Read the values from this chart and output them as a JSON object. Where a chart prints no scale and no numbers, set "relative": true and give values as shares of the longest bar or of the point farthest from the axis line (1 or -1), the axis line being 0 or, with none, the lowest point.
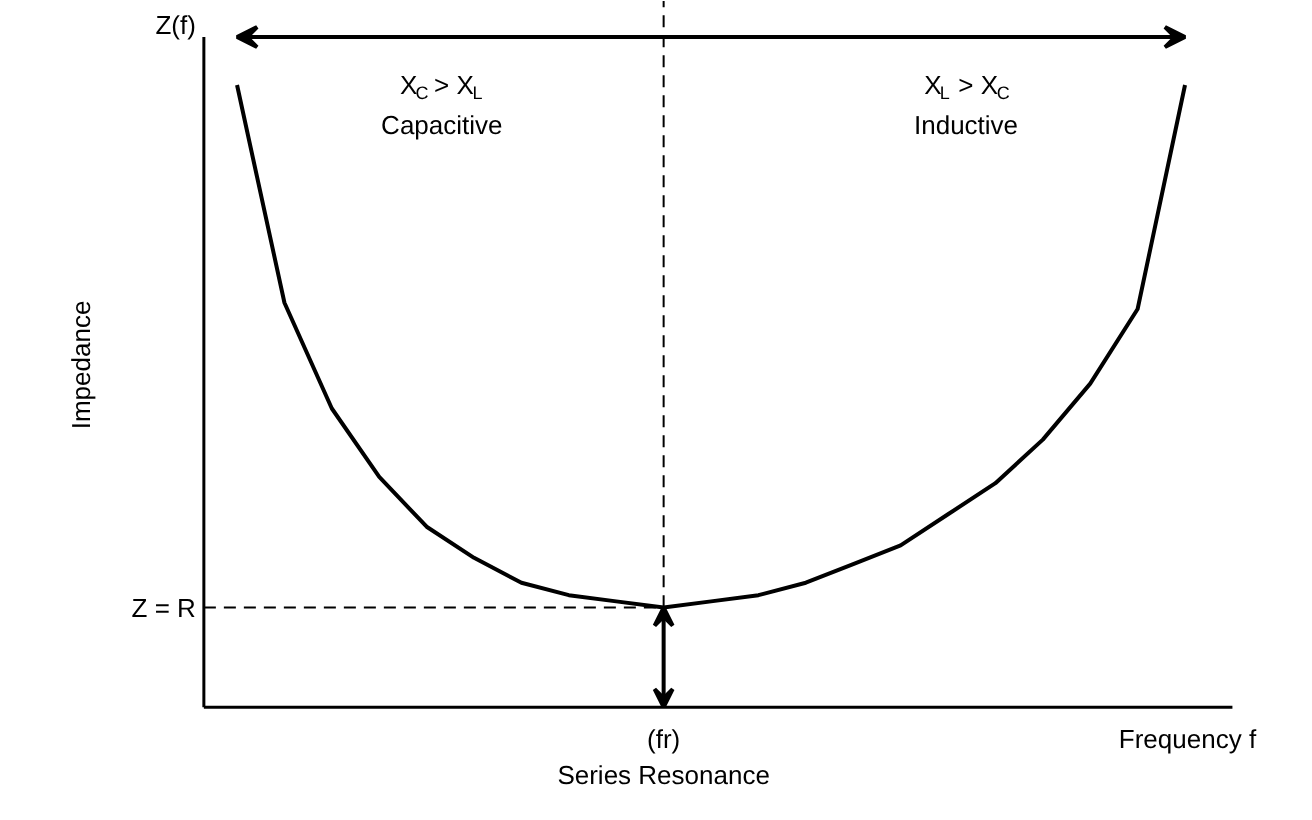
{
  "chart_data": {
    "type": "line",
    "relative": true,
    "ylabel": "Impedance",
    "xlabel": "Frequency f",
    "categories": [
      null,
      null,
      null,
      null,
      null,
      null,
      null,
      null,
      null,
      null,
      null,
      null,
      null,
      null,
      null,
      null,
      null,
      null,
      null,
      null,
      null
    ],
    "series": [
      {
        "color": "#000000",
        "values": [
          1.0,
          0.65,
          0.48,
          0.37,
          0.29,
          0.24,
          0.2,
          0.18,
          0.17,
          0.16,
          0.17,
          0.18,
          0.2,
          0.23,
          0.26,
          0.31,
          0.36,
          0.43,
          0.52,
          0.64,
          1.0
        ]
      }
    ],
    "ref_lines": [
      {
        "axis": "y",
        "value": 0.16,
        "label": "Z = R",
        "line_style": "dashed",
        "color": "#000000"
      }
    ],
    "annotations": [
      "Z(f)",
      "(fr)",
      "Series Resonance",
      "X$_{C}$ > X$_{L}$",
      "Capacitive",
      "X$_{L}$ > X$_{C}$",
      "Inductive"
    ],
    "grid": false,
    "legend": false,
    "marker": "none",
    "line_style": "solid"
  }
}
